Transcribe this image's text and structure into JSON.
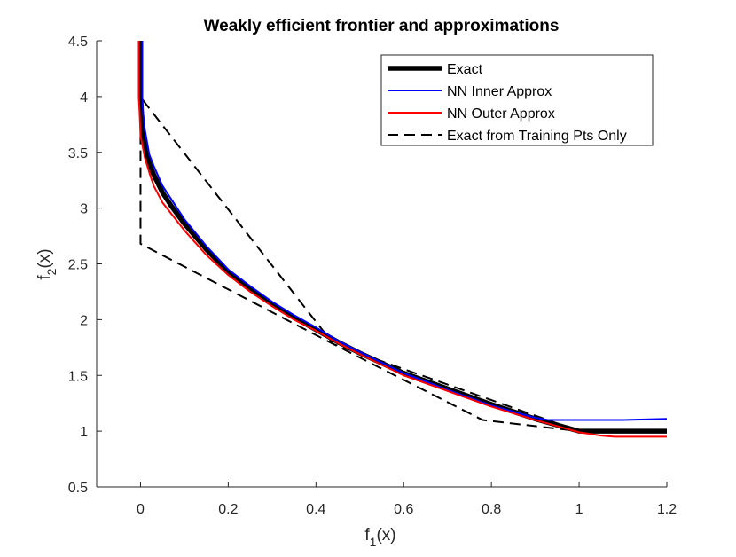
{
  "chart_data": {
    "type": "line",
    "title": "Weakly efficient frontier and approximations",
    "xlabel": {
      "base": "f",
      "sub": "1",
      "suffix": "(x)"
    },
    "ylabel": {
      "base": "f",
      "sub": "2",
      "suffix": "(x)"
    },
    "xlim": [
      -0.1,
      1.2
    ],
    "ylim": [
      0.5,
      4.5
    ],
    "xticks": [
      0,
      0.2,
      0.4,
      0.6,
      0.8,
      1.0,
      1.2
    ],
    "xtick_labels": [
      "0",
      "0.2",
      "0.4",
      "0.6",
      "0.8",
      "1",
      "1.2"
    ],
    "yticks": [
      0.5,
      1.0,
      1.5,
      2.0,
      2.5,
      3.0,
      3.5,
      4.0,
      4.5
    ],
    "ytick_labels": [
      "0.5",
      "1",
      "1.5",
      "2",
      "2.5",
      "3",
      "3.5",
      "4",
      "4.5"
    ],
    "grid": false,
    "legend_position": "top-right",
    "series": [
      {
        "name": "Exact",
        "color": "#000000",
        "style": "solid",
        "weight": "thick",
        "x": [
          0.0,
          0.0,
          0.002,
          0.005,
          0.01,
          0.02,
          0.03,
          0.05,
          0.07,
          0.1,
          0.15,
          0.2,
          0.25,
          0.3,
          0.35,
          0.4,
          0.45,
          0.5,
          0.6,
          0.7,
          0.8,
          0.9,
          1.0,
          1.1,
          1.2
        ],
        "y": [
          4.5,
          4.0,
          3.85,
          3.7,
          3.55,
          3.4,
          3.3,
          3.14,
          3.02,
          2.86,
          2.63,
          2.43,
          2.28,
          2.14,
          2.02,
          1.91,
          1.8,
          1.7,
          1.52,
          1.38,
          1.24,
          1.11,
          1.0,
          1.0,
          1.0
        ]
      },
      {
        "name": "NN Inner Approx",
        "color": "#0000ff",
        "style": "solid",
        "weight": "normal",
        "x": [
          0.004,
          0.004,
          0.006,
          0.01,
          0.02,
          0.03,
          0.05,
          0.07,
          0.1,
          0.15,
          0.2,
          0.25,
          0.3,
          0.35,
          0.4,
          0.45,
          0.5,
          0.6,
          0.7,
          0.8,
          0.9,
          0.93,
          1.0,
          1.1,
          1.2
        ],
        "y": [
          4.5,
          4.0,
          3.85,
          3.7,
          3.48,
          3.38,
          3.2,
          3.08,
          2.9,
          2.66,
          2.45,
          2.3,
          2.16,
          2.04,
          1.93,
          1.81,
          1.71,
          1.52,
          1.37,
          1.23,
          1.12,
          1.1,
          1.1,
          1.1,
          1.11
        ]
      },
      {
        "name": "NN Outer Approx",
        "color": "#ff0000",
        "style": "solid",
        "weight": "normal",
        "x": [
          -0.004,
          -0.004,
          -0.002,
          0.0,
          0.01,
          0.02,
          0.03,
          0.05,
          0.07,
          0.1,
          0.15,
          0.2,
          0.25,
          0.3,
          0.35,
          0.4,
          0.45,
          0.5,
          0.6,
          0.7,
          0.8,
          0.9,
          1.0,
          1.05,
          1.08,
          1.2
        ],
        "y": [
          4.5,
          4.0,
          3.85,
          3.65,
          3.45,
          3.32,
          3.2,
          3.05,
          2.95,
          2.8,
          2.58,
          2.4,
          2.25,
          2.12,
          2.0,
          1.9,
          1.79,
          1.69,
          1.5,
          1.36,
          1.22,
          1.1,
          0.99,
          0.96,
          0.95,
          0.95
        ]
      },
      {
        "name": "Exact from Training Pts Only",
        "color": "#000000",
        "style": "dashed",
        "weight": "normal",
        "segments": [
          {
            "x": [
              0.0,
              0.0,
              0.44,
              0.78,
              1.0
            ],
            "y": [
              3.97,
              2.68,
              1.78,
              1.1,
              1.0
            ]
          },
          {
            "x": [
              0.005,
              0.44,
              1.0
            ],
            "y": [
              3.97,
              1.78,
              1.0
            ]
          }
        ]
      }
    ]
  }
}
